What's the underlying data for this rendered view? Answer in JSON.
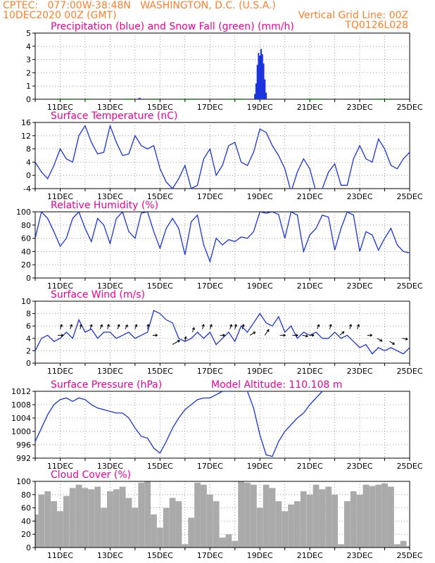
{
  "header": {
    "line1_left": "CPTEC:   077:00W-38:48N   WASHINGTON, D.C. (U.S.A.)",
    "line2_left": "10DEC2020 00Z (GMT)",
    "line2_right": "Vertical Grid Line: 00Z",
    "line3_right": "TQ0126L028"
  },
  "colors": {
    "header": "#ff7f2a",
    "title": "#ee0099",
    "line": "#1a33dd",
    "snow": "#22aa22",
    "cloud": "#aaaaaa"
  },
  "chart_data": [
    {
      "type": "bar",
      "title": "Precipitation (blue) and Snow Fall (green) (mm/h)",
      "ylim": [
        0,
        5
      ],
      "yticks": [
        0,
        1,
        2,
        3,
        4,
        5
      ],
      "xticks": [
        "11DEC",
        "13DEC",
        "15DEC",
        "17DEC",
        "19DEC",
        "21DEC",
        "23DEC",
        "25DEC"
      ],
      "grid": true,
      "series": [
        {
          "name": "Precipitation",
          "x": [
            14.15,
            14.2,
            18.8,
            18.85,
            18.9,
            18.95,
            19.0,
            19.05,
            19.1,
            19.15,
            19.2,
            19.25
          ],
          "values": [
            0.08,
            0.1,
            0.4,
            1.2,
            2.6,
            3.5,
            3.3,
            3.8,
            3.4,
            2.7,
            1.5,
            0.5
          ]
        },
        {
          "name": "Snow Fall",
          "x": [
            11.0,
            11.4,
            12.1,
            13.7,
            14.8,
            15.9,
            16.3,
            17.9,
            18.2,
            21.0,
            21.3,
            23.8,
            24.1
          ],
          "values": [
            0.05,
            0.05,
            0.05,
            0.05,
            0.05,
            0.05,
            0.05,
            0.05,
            0.05,
            0.05,
            0.05,
            0.05,
            0.05
          ]
        }
      ]
    },
    {
      "type": "line",
      "title": "Surface Temperature (nC)",
      "ylim": [
        -4,
        16
      ],
      "yticks": [
        -4,
        0,
        4,
        8,
        12,
        16
      ],
      "xticks": [
        "11DEC",
        "13DEC",
        "15DEC",
        "17DEC",
        "19DEC",
        "21DEC",
        "23DEC",
        "25DEC"
      ],
      "grid": true,
      "x": [
        10.0,
        10.25,
        10.5,
        10.75,
        11.0,
        11.25,
        11.5,
        11.75,
        12.0,
        12.25,
        12.5,
        12.75,
        13.0,
        13.25,
        13.5,
        13.75,
        14.0,
        14.25,
        14.5,
        14.75,
        15.0,
        15.25,
        15.5,
        15.75,
        16.0,
        16.25,
        16.5,
        16.75,
        17.0,
        17.25,
        17.5,
        17.75,
        18.0,
        18.25,
        18.5,
        18.75,
        19.0,
        19.25,
        19.5,
        19.75,
        20.0,
        20.25,
        20.5,
        20.75,
        21.0,
        21.25,
        21.5,
        21.75,
        22.0,
        22.25,
        22.5,
        22.75,
        23.0,
        23.25,
        23.5,
        23.75,
        24.0,
        24.25,
        24.5,
        24.75,
        25.0
      ],
      "series": [
        {
          "values": [
            4.0,
            1.0,
            -1.0,
            3.0,
            8.0,
            5.0,
            4.0,
            12.0,
            15.0,
            10.0,
            6.5,
            7.0,
            15.0,
            10.0,
            6.0,
            6.5,
            12.0,
            9.0,
            8.0,
            9.0,
            2.0,
            -2.0,
            -4.0,
            -1.0,
            3.0,
            -4.0,
            -3.0,
            5.0,
            8.0,
            0.0,
            3.0,
            9.0,
            10.0,
            4.0,
            3.0,
            7.0,
            14.0,
            13.0,
            9.0,
            6.0,
            2.0,
            -5.0,
            1.0,
            5.0,
            2.0,
            -5.0,
            -4.0,
            1.0,
            3.5,
            -3.0,
            -3.0,
            5.0,
            9.0,
            5.0,
            4.0,
            11.0,
            8.0,
            3.0,
            2.0,
            5.0,
            7.0
          ]
        }
      ]
    },
    {
      "type": "line",
      "title": "Relative Humidity (%)",
      "ylim": [
        0,
        100
      ],
      "yticks": [
        0,
        20,
        40,
        60,
        80,
        100
      ],
      "xticks": [
        "11DEC",
        "13DEC",
        "15DEC",
        "17DEC",
        "19DEC",
        "21DEC",
        "23DEC",
        "25DEC"
      ],
      "grid": true,
      "x": [
        10.0,
        10.25,
        10.5,
        10.75,
        11.0,
        11.25,
        11.5,
        11.75,
        12.0,
        12.25,
        12.5,
        12.75,
        13.0,
        13.25,
        13.5,
        13.75,
        14.0,
        14.25,
        14.5,
        14.75,
        15.0,
        15.25,
        15.5,
        15.75,
        16.0,
        16.25,
        16.5,
        16.75,
        17.0,
        17.25,
        17.5,
        17.75,
        18.0,
        18.25,
        18.5,
        18.75,
        19.0,
        19.25,
        19.5,
        19.75,
        20.0,
        20.25,
        20.5,
        20.75,
        21.0,
        21.25,
        21.5,
        21.75,
        22.0,
        22.25,
        22.5,
        22.75,
        23.0,
        23.25,
        23.5,
        23.75,
        24.0,
        24.25,
        24.5,
        24.75,
        25.0
      ],
      "series": [
        {
          "values": [
            60.0,
            100.0,
            90.0,
            70.0,
            48.0,
            60.0,
            90.0,
            100.0,
            75.0,
            55.0,
            90.0,
            80.0,
            52.0,
            90.0,
            100.0,
            70.0,
            60.0,
            98.0,
            100.0,
            70.0,
            45.0,
            75.0,
            90.0,
            75.0,
            35.0,
            85.0,
            95.0,
            50.0,
            25.0,
            60.0,
            50.0,
            58.0,
            55.0,
            62.0,
            60.0,
            70.0,
            100.0,
            98.0,
            100.0,
            96.0,
            60.0,
            100.0,
            95.0,
            40.0,
            65.0,
            75.0,
            95.0,
            92.0,
            42.0,
            75.0,
            100.0,
            95.0,
            40.0,
            70.0,
            65.0,
            42.0,
            60.0,
            75.0,
            50.0,
            40.0,
            38.0
          ]
        }
      ]
    },
    {
      "type": "line",
      "title": "Surface Wind (m/s)",
      "ylim": [
        0,
        10
      ],
      "yticks": [
        0,
        2,
        4,
        6,
        8,
        10
      ],
      "xticks": [
        "11DEC",
        "13DEC",
        "15DEC",
        "17DEC",
        "19DEC",
        "21DEC",
        "23DEC",
        "25DEC"
      ],
      "grid": true,
      "x": [
        10.0,
        10.25,
        10.5,
        10.75,
        11.0,
        11.25,
        11.5,
        11.75,
        12.0,
        12.25,
        12.5,
        12.75,
        13.0,
        13.25,
        13.5,
        13.75,
        14.0,
        14.25,
        14.5,
        14.75,
        15.0,
        15.25,
        15.5,
        15.75,
        16.0,
        16.25,
        16.5,
        16.75,
        17.0,
        17.25,
        17.5,
        17.75,
        18.0,
        18.25,
        18.5,
        18.75,
        19.0,
        19.25,
        19.5,
        19.75,
        20.0,
        20.25,
        20.5,
        20.75,
        21.0,
        21.25,
        21.5,
        21.75,
        22.0,
        22.25,
        22.5,
        22.75,
        23.0,
        23.25,
        23.5,
        23.75,
        24.0,
        24.25,
        24.5,
        24.75,
        25.0
      ],
      "series": [
        {
          "values": [
            2.0,
            4.0,
            4.5,
            3.5,
            4.0,
            5.0,
            4.0,
            7.0,
            5.0,
            5.5,
            4.0,
            5.0,
            5.0,
            4.0,
            4.5,
            5.0,
            4.0,
            4.5,
            5.0,
            8.5,
            8.0,
            7.0,
            6.5,
            4.0,
            3.5,
            4.0,
            5.0,
            4.0,
            5.0,
            3.0,
            4.0,
            5.0,
            3.5,
            6.0,
            5.0,
            6.5,
            8.0,
            6.5,
            6.0,
            7.5,
            5.0,
            6.0,
            4.0,
            5.0,
            4.5,
            5.0,
            4.0,
            4.0,
            5.0,
            4.0,
            4.5,
            3.5,
            2.5,
            3.0,
            1.5,
            2.5,
            2.0,
            2.5,
            2.0,
            1.5,
            2.5
          ]
        }
      ],
      "arrows": [
        {
          "x": 10.9,
          "y": 4.5,
          "dir": 90,
          "len": 8
        },
        {
          "x": 11.0,
          "y": 5.5,
          "dir": 20,
          "len": 7
        },
        {
          "x": 11.4,
          "y": 5.5,
          "dir": 20,
          "len": 7
        },
        {
          "x": 11.8,
          "y": 5.5,
          "dir": 15,
          "len": 7
        },
        {
          "x": 12.2,
          "y": 5.5,
          "dir": 20,
          "len": 7
        },
        {
          "x": 12.6,
          "y": 5.5,
          "dir": 25,
          "len": 7
        },
        {
          "x": 12.9,
          "y": 5.5,
          "dir": 15,
          "len": 7
        },
        {
          "x": 13.3,
          "y": 5.5,
          "dir": 20,
          "len": 7
        },
        {
          "x": 13.6,
          "y": 5.5,
          "dir": 30,
          "len": 7
        },
        {
          "x": 14.0,
          "y": 5.5,
          "dir": 20,
          "len": 7
        },
        {
          "x": 14.5,
          "y": 5.5,
          "dir": 10,
          "len": 7
        },
        {
          "x": 14.7,
          "y": 4.5,
          "dir": 90,
          "len": 7
        },
        {
          "x": 15.5,
          "y": 3.0,
          "dir": 60,
          "len": 12
        },
        {
          "x": 16.0,
          "y": 3.5,
          "dir": 10,
          "len": 7
        },
        {
          "x": 16.3,
          "y": 5.0,
          "dir": 20,
          "len": 7
        },
        {
          "x": 16.7,
          "y": 5.5,
          "dir": 15,
          "len": 7
        },
        {
          "x": 17.0,
          "y": 5.5,
          "dir": 20,
          "len": 7
        },
        {
          "x": 17.4,
          "y": 4.5,
          "dir": 90,
          "len": 7
        },
        {
          "x": 17.8,
          "y": 5.5,
          "dir": 20,
          "len": 7
        },
        {
          "x": 18.0,
          "y": 5.5,
          "dir": 15,
          "len": 7
        },
        {
          "x": 18.3,
          "y": 5.5,
          "dir": 15,
          "len": 7
        },
        {
          "x": 18.6,
          "y": 4.5,
          "dir": 60,
          "len": 9
        },
        {
          "x": 19.2,
          "y": 4.5,
          "dir": 35,
          "len": 10
        },
        {
          "x": 19.8,
          "y": 4.5,
          "dir": 90,
          "len": 8
        },
        {
          "x": 20.3,
          "y": 4.5,
          "dir": 90,
          "len": 8
        },
        {
          "x": 20.7,
          "y": 4.5,
          "dir": 100,
          "len": 8
        },
        {
          "x": 21.0,
          "y": 4.5,
          "dir": 90,
          "len": 6
        },
        {
          "x": 21.3,
          "y": 5.5,
          "dir": 20,
          "len": 7
        },
        {
          "x": 21.8,
          "y": 5.5,
          "dir": 15,
          "len": 7
        },
        {
          "x": 22.2,
          "y": 4.5,
          "dir": 50,
          "len": 8
        },
        {
          "x": 22.6,
          "y": 5.5,
          "dir": 15,
          "len": 7
        },
        {
          "x": 22.9,
          "y": 5.5,
          "dir": 20,
          "len": 7
        },
        {
          "x": 23.3,
          "y": 4.5,
          "dir": 90,
          "len": 7
        },
        {
          "x": 23.7,
          "y": 4.0,
          "dir": 120,
          "len": 8
        },
        {
          "x": 24.2,
          "y": 3.5,
          "dir": 120,
          "len": 8
        },
        {
          "x": 24.7,
          "y": 4.0,
          "dir": 100,
          "len": 8
        }
      ]
    },
    {
      "type": "line",
      "title": "Surface Pressure (hPa)",
      "annotation": "Model Altitude: 110.108 m",
      "ylim": [
        992,
        1012
      ],
      "yticks": [
        992,
        996,
        1000,
        1004,
        1008,
        1012
      ],
      "xticks": [
        "11DEC",
        "13DEC",
        "15DEC",
        "17DEC",
        "19DEC",
        "21DEC",
        "23DEC",
        "25DEC"
      ],
      "grid": true,
      "x": [
        10.0,
        10.25,
        10.5,
        10.75,
        11.0,
        11.25,
        11.5,
        11.75,
        12.0,
        12.25,
        12.5,
        12.75,
        13.0,
        13.25,
        13.5,
        13.75,
        14.0,
        14.25,
        14.5,
        14.75,
        15.0,
        15.25,
        15.5,
        15.75,
        16.0,
        16.25,
        16.5,
        16.75,
        17.0,
        17.25,
        17.5,
        17.75,
        18.0,
        18.25,
        18.5,
        18.75,
        19.0,
        19.25,
        19.5,
        19.75,
        20.0,
        20.25,
        20.5,
        20.75,
        21.0,
        21.25,
        21.5
      ],
      "series": [
        {
          "values": [
            997.0,
            1001.0,
            1005.0,
            1008.0,
            1009.5,
            1010.0,
            1009.0,
            1010.0,
            1009.5,
            1008.0,
            1007.0,
            1006.5,
            1006.0,
            1005.5,
            1005.5,
            1004.0,
            1001.0,
            998.5,
            998.0,
            995.0,
            993.5,
            997.0,
            1001.0,
            1004.0,
            1006.5,
            1008.0,
            1009.5,
            1010.0,
            1010.0,
            1011.0,
            1012.0,
            1012.0,
            1012.0,
            1012.5,
            1012.0,
            1007.0,
            999.0,
            993.0,
            992.5,
            997.0,
            1000.0,
            1002.0,
            1004.0,
            1005.5,
            1008.0,
            1010.0,
            1012.0
          ]
        }
      ]
    },
    {
      "type": "area",
      "title": "Cloud Cover (%)",
      "ylim": [
        0,
        100
      ],
      "yticks": [
        0,
        20,
        40,
        60,
        80,
        100
      ],
      "xticks": [
        "11DEC",
        "13DEC",
        "15DEC",
        "17DEC",
        "19DEC",
        "21DEC",
        "23DEC",
        "25DEC"
      ],
      "grid": true,
      "x": [
        10.0,
        10.25,
        10.5,
        10.75,
        11.0,
        11.25,
        11.5,
        11.75,
        12.0,
        12.25,
        12.5,
        12.75,
        13.0,
        13.25,
        13.5,
        13.75,
        14.0,
        14.25,
        14.5,
        14.75,
        15.0,
        15.25,
        15.5,
        15.75,
        16.0,
        16.25,
        16.5,
        16.75,
        17.0,
        17.25,
        17.5,
        17.75,
        18.0,
        18.25,
        18.5,
        18.75,
        19.0,
        19.25,
        19.5,
        19.75,
        20.0,
        20.25,
        20.5,
        20.75,
        21.0,
        21.25,
        21.5,
        21.75,
        22.0,
        22.25,
        22.5,
        22.75,
        23.0,
        23.25,
        23.5,
        23.75,
        24.0,
        24.25,
        24.5,
        24.75,
        25.0
      ],
      "series": [
        {
          "name": "Cloud Cover",
          "values": [
            50.0,
            80.0,
            85.0,
            70.0,
            55.0,
            78.0,
            90.0,
            95.0,
            90.0,
            88.0,
            92.0,
            60.0,
            85.0,
            88.0,
            92.0,
            75.0,
            60.0,
            98.0,
            100.0,
            50.0,
            30.0,
            60.0,
            75.0,
            70.0,
            5.0,
            45.0,
            98.0,
            95.0,
            80.0,
            70.0,
            15.0,
            20.0,
            10.0,
            100.0,
            98.0,
            95.0,
            60.0,
            95.0,
            90.0,
            70.0,
            55.0,
            65.0,
            70.0,
            85.0,
            80.0,
            95.0,
            88.0,
            92.0,
            80.0,
            5.0,
            70.0,
            85.0,
            80.0,
            95.0,
            93.0,
            95.0,
            97.0,
            92.0,
            5.0,
            10.0,
            2.0
          ]
        }
      ]
    }
  ]
}
